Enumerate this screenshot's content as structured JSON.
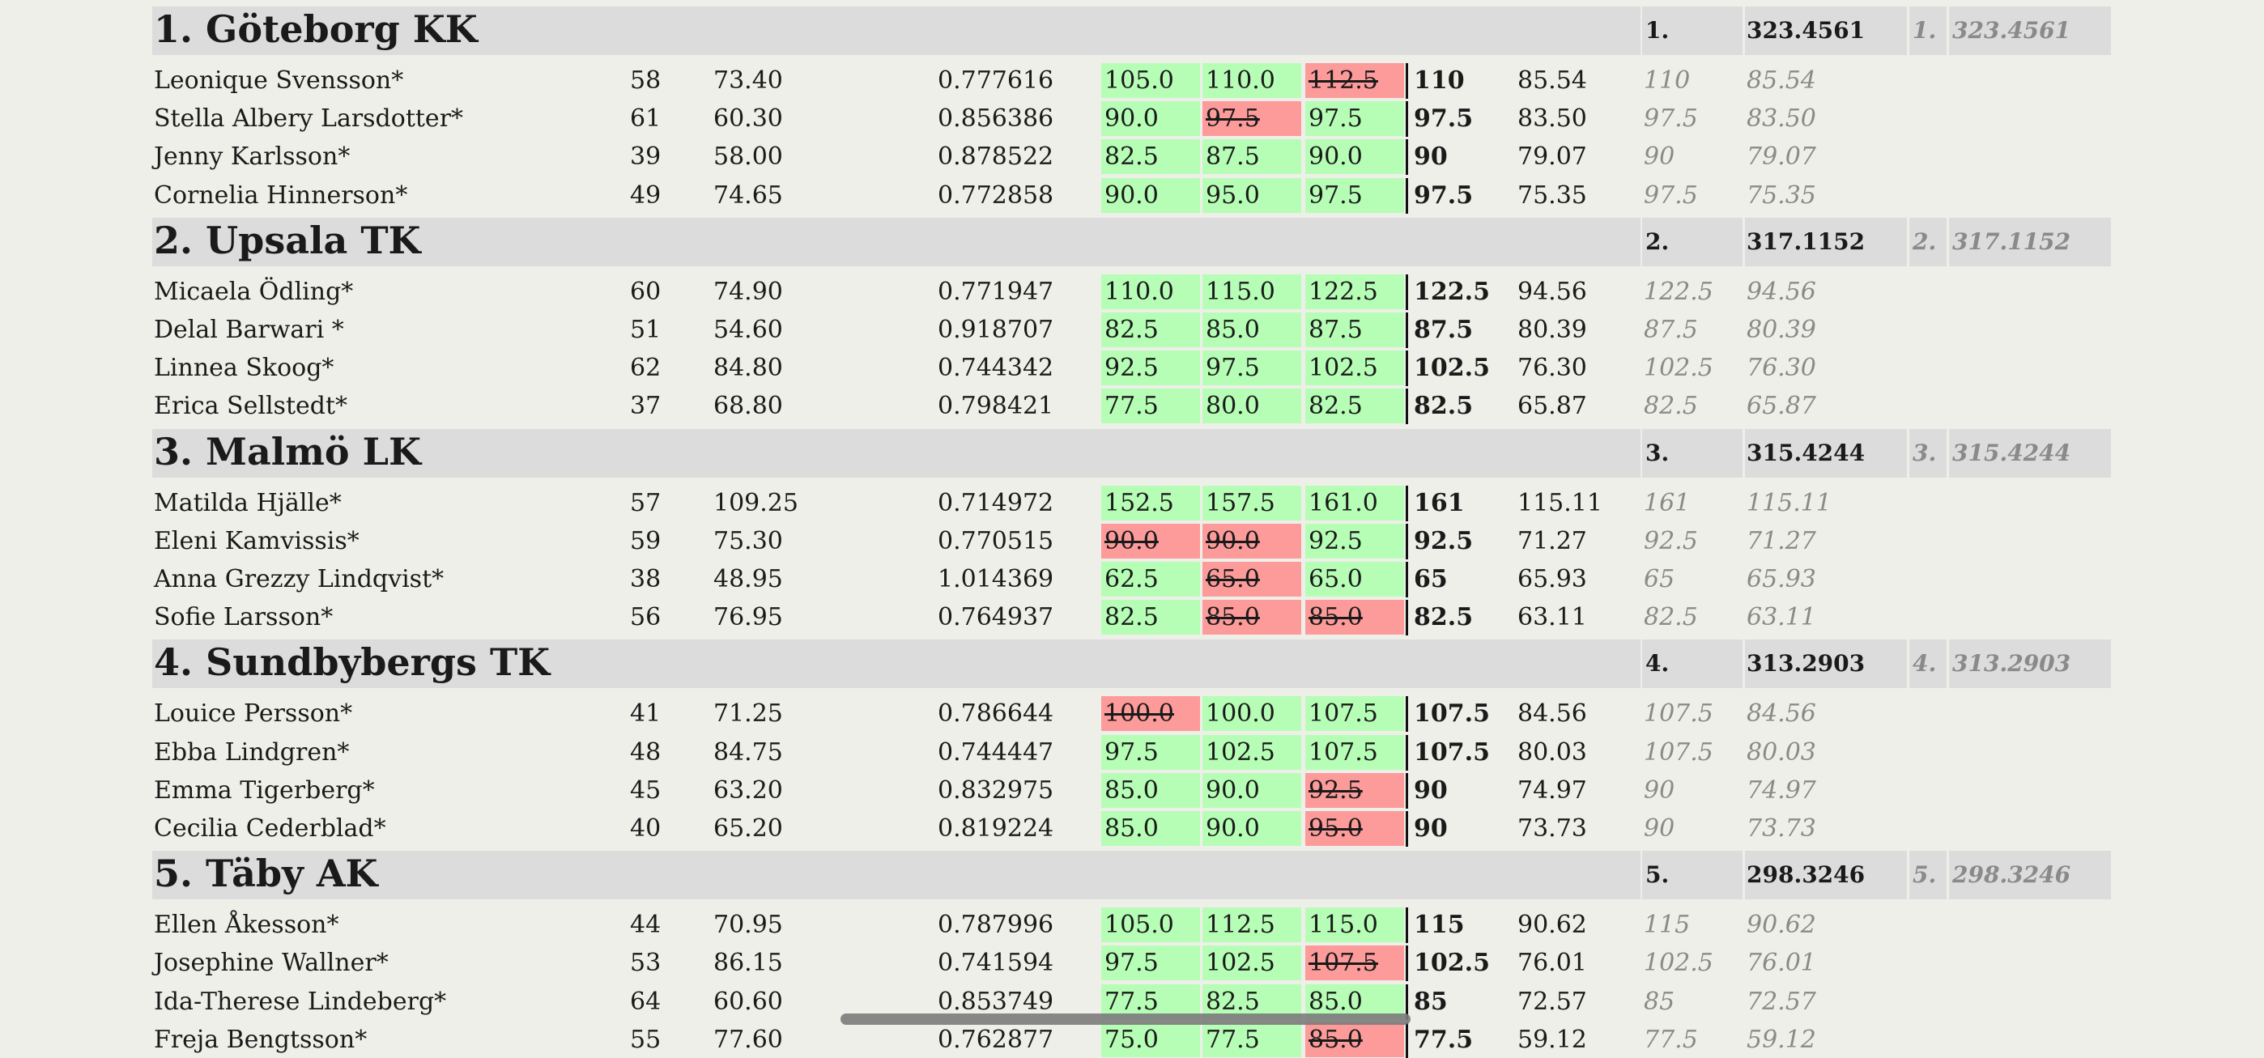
{
  "teams": [
    {
      "place": "1.",
      "name": "Göteborg KK",
      "total": "323.4561",
      "place_i": "1.",
      "total_i": "323.4561",
      "athletes": [
        {
          "name": "Leonique Svensson*",
          "age": "58",
          "bw": "73.40",
          "coef": "0.777616",
          "a1": "105.0",
          "a1ok": true,
          "a2": "110.0",
          "a2ok": true,
          "a3": "112.5",
          "a3ok": false,
          "best": "110",
          "pts": "85.54",
          "best_i": "110",
          "pts_i": "85.54"
        },
        {
          "name": "Stella Albery Larsdotter*",
          "age": "61",
          "bw": "60.30",
          "coef": "0.856386",
          "a1": "90.0",
          "a1ok": true,
          "a2": "97.5",
          "a2ok": false,
          "a3": "97.5",
          "a3ok": true,
          "best": "97.5",
          "pts": "83.50",
          "best_i": "97.5",
          "pts_i": "83.50"
        },
        {
          "name": "Jenny Karlsson*",
          "age": "39",
          "bw": "58.00",
          "coef": "0.878522",
          "a1": "82.5",
          "a1ok": true,
          "a2": "87.5",
          "a2ok": true,
          "a3": "90.0",
          "a3ok": true,
          "best": "90",
          "pts": "79.07",
          "best_i": "90",
          "pts_i": "79.07"
        },
        {
          "name": "Cornelia Hinnerson*",
          "age": "49",
          "bw": "74.65",
          "coef": "0.772858",
          "a1": "90.0",
          "a1ok": true,
          "a2": "95.0",
          "a2ok": true,
          "a3": "97.5",
          "a3ok": true,
          "best": "97.5",
          "pts": "75.35",
          "best_i": "97.5",
          "pts_i": "75.35"
        }
      ]
    },
    {
      "place": "2.",
      "name": "Upsala TK",
      "total": "317.1152",
      "place_i": "2.",
      "total_i": "317.1152",
      "athletes": [
        {
          "name": "Micaela Ödling*",
          "age": "60",
          "bw": "74.90",
          "coef": "0.771947",
          "a1": "110.0",
          "a1ok": true,
          "a2": "115.0",
          "a2ok": true,
          "a3": "122.5",
          "a3ok": true,
          "best": "122.5",
          "pts": "94.56",
          "best_i": "122.5",
          "pts_i": "94.56"
        },
        {
          "name": "Delal Barwari *",
          "age": "51",
          "bw": "54.60",
          "coef": "0.918707",
          "a1": "82.5",
          "a1ok": true,
          "a2": "85.0",
          "a2ok": true,
          "a3": "87.5",
          "a3ok": true,
          "best": "87.5",
          "pts": "80.39",
          "best_i": "87.5",
          "pts_i": "80.39"
        },
        {
          "name": "Linnea Skoog*",
          "age": "62",
          "bw": "84.80",
          "coef": "0.744342",
          "a1": "92.5",
          "a1ok": true,
          "a2": "97.5",
          "a2ok": true,
          "a3": "102.5",
          "a3ok": true,
          "best": "102.5",
          "pts": "76.30",
          "best_i": "102.5",
          "pts_i": "76.30"
        },
        {
          "name": "Erica Sellstedt*",
          "age": "37",
          "bw": "68.80",
          "coef": "0.798421",
          "a1": "77.5",
          "a1ok": true,
          "a2": "80.0",
          "a2ok": true,
          "a3": "82.5",
          "a3ok": true,
          "best": "82.5",
          "pts": "65.87",
          "best_i": "82.5",
          "pts_i": "65.87"
        }
      ]
    },
    {
      "place": "3.",
      "name": "Malmö LK",
      "total": "315.4244",
      "place_i": "3.",
      "total_i": "315.4244",
      "athletes": [
        {
          "name": "Matilda Hjälle*",
          "age": "57",
          "bw": "109.25",
          "coef": "0.714972",
          "a1": "152.5",
          "a1ok": true,
          "a2": "157.5",
          "a2ok": true,
          "a3": "161.0",
          "a3ok": true,
          "best": "161",
          "pts": "115.11",
          "best_i": "161",
          "pts_i": "115.11"
        },
        {
          "name": "Eleni Kamvissis*",
          "age": "59",
          "bw": "75.30",
          "coef": "0.770515",
          "a1": "90.0",
          "a1ok": false,
          "a2": "90.0",
          "a2ok": false,
          "a3": "92.5",
          "a3ok": true,
          "best": "92.5",
          "pts": "71.27",
          "best_i": "92.5",
          "pts_i": "71.27"
        },
        {
          "name": "Anna Grezzy Lindqvist*",
          "age": "38",
          "bw": "48.95",
          "coef": "1.014369",
          "a1": "62.5",
          "a1ok": true,
          "a2": "65.0",
          "a2ok": false,
          "a3": "65.0",
          "a3ok": true,
          "best": "65",
          "pts": "65.93",
          "best_i": "65",
          "pts_i": "65.93"
        },
        {
          "name": "Sofie Larsson*",
          "age": "56",
          "bw": "76.95",
          "coef": "0.764937",
          "a1": "82.5",
          "a1ok": true,
          "a2": "85.0",
          "a2ok": false,
          "a3": "85.0",
          "a3ok": false,
          "best": "82.5",
          "pts": "63.11",
          "best_i": "82.5",
          "pts_i": "63.11"
        }
      ]
    },
    {
      "place": "4.",
      "name": "Sundbybergs TK",
      "total": "313.2903",
      "place_i": "4.",
      "total_i": "313.2903",
      "athletes": [
        {
          "name": "Louice Persson*",
          "age": "41",
          "bw": "71.25",
          "coef": "0.786644",
          "a1": "100.0",
          "a1ok": false,
          "a2": "100.0",
          "a2ok": true,
          "a3": "107.5",
          "a3ok": true,
          "best": "107.5",
          "pts": "84.56",
          "best_i": "107.5",
          "pts_i": "84.56"
        },
        {
          "name": "Ebba Lindgren*",
          "age": "48",
          "bw": "84.75",
          "coef": "0.744447",
          "a1": "97.5",
          "a1ok": true,
          "a2": "102.5",
          "a2ok": true,
          "a3": "107.5",
          "a3ok": true,
          "best": "107.5",
          "pts": "80.03",
          "best_i": "107.5",
          "pts_i": "80.03"
        },
        {
          "name": "Emma Tigerberg*",
          "age": "45",
          "bw": "63.20",
          "coef": "0.832975",
          "a1": "85.0",
          "a1ok": true,
          "a2": "90.0",
          "a2ok": true,
          "a3": "92.5",
          "a3ok": false,
          "best": "90",
          "pts": "74.97",
          "best_i": "90",
          "pts_i": "74.97"
        },
        {
          "name": "Cecilia Cederblad*",
          "age": "40",
          "bw": "65.20",
          "coef": "0.819224",
          "a1": "85.0",
          "a1ok": true,
          "a2": "90.0",
          "a2ok": true,
          "a3": "95.0",
          "a3ok": false,
          "best": "90",
          "pts": "73.73",
          "best_i": "90",
          "pts_i": "73.73"
        }
      ]
    },
    {
      "place": "5.",
      "name": "Täby AK",
      "total": "298.3246",
      "place_i": "5.",
      "total_i": "298.3246",
      "athletes": [
        {
          "name": "Ellen Åkesson*",
          "age": "44",
          "bw": "70.95",
          "coef": "0.787996",
          "a1": "105.0",
          "a1ok": true,
          "a2": "112.5",
          "a2ok": true,
          "a3": "115.0",
          "a3ok": true,
          "best": "115",
          "pts": "90.62",
          "best_i": "115",
          "pts_i": "90.62"
        },
        {
          "name": "Josephine Wallner*",
          "age": "53",
          "bw": "86.15",
          "coef": "0.741594",
          "a1": "97.5",
          "a1ok": true,
          "a2": "102.5",
          "a2ok": true,
          "a3": "107.5",
          "a3ok": false,
          "best": "102.5",
          "pts": "76.01",
          "best_i": "102.5",
          "pts_i": "76.01"
        },
        {
          "name": "Ida-Therese Lindeberg*",
          "age": "64",
          "bw": "60.60",
          "coef": "0.853749",
          "a1": "77.5",
          "a1ok": true,
          "a2": "82.5",
          "a2ok": true,
          "a3": "85.0",
          "a3ok": true,
          "best": "85",
          "pts": "72.57",
          "best_i": "85",
          "pts_i": "72.57"
        },
        {
          "name": "Freja Bengtsson*",
          "age": "55",
          "bw": "77.60",
          "coef": "0.762877",
          "a1": "75.0",
          "a1ok": true,
          "a2": "77.5",
          "a2ok": true,
          "a3": "85.0",
          "a3ok": false,
          "best": "77.5",
          "pts": "59.12",
          "best_i": "77.5",
          "pts_i": "59.12"
        }
      ]
    }
  ],
  "colors": {
    "good_attempt": "#b6fdb6",
    "failed_attempt": "#fd9a9a",
    "team_band": "#dcdcdc",
    "background": "#efefe9"
  }
}
